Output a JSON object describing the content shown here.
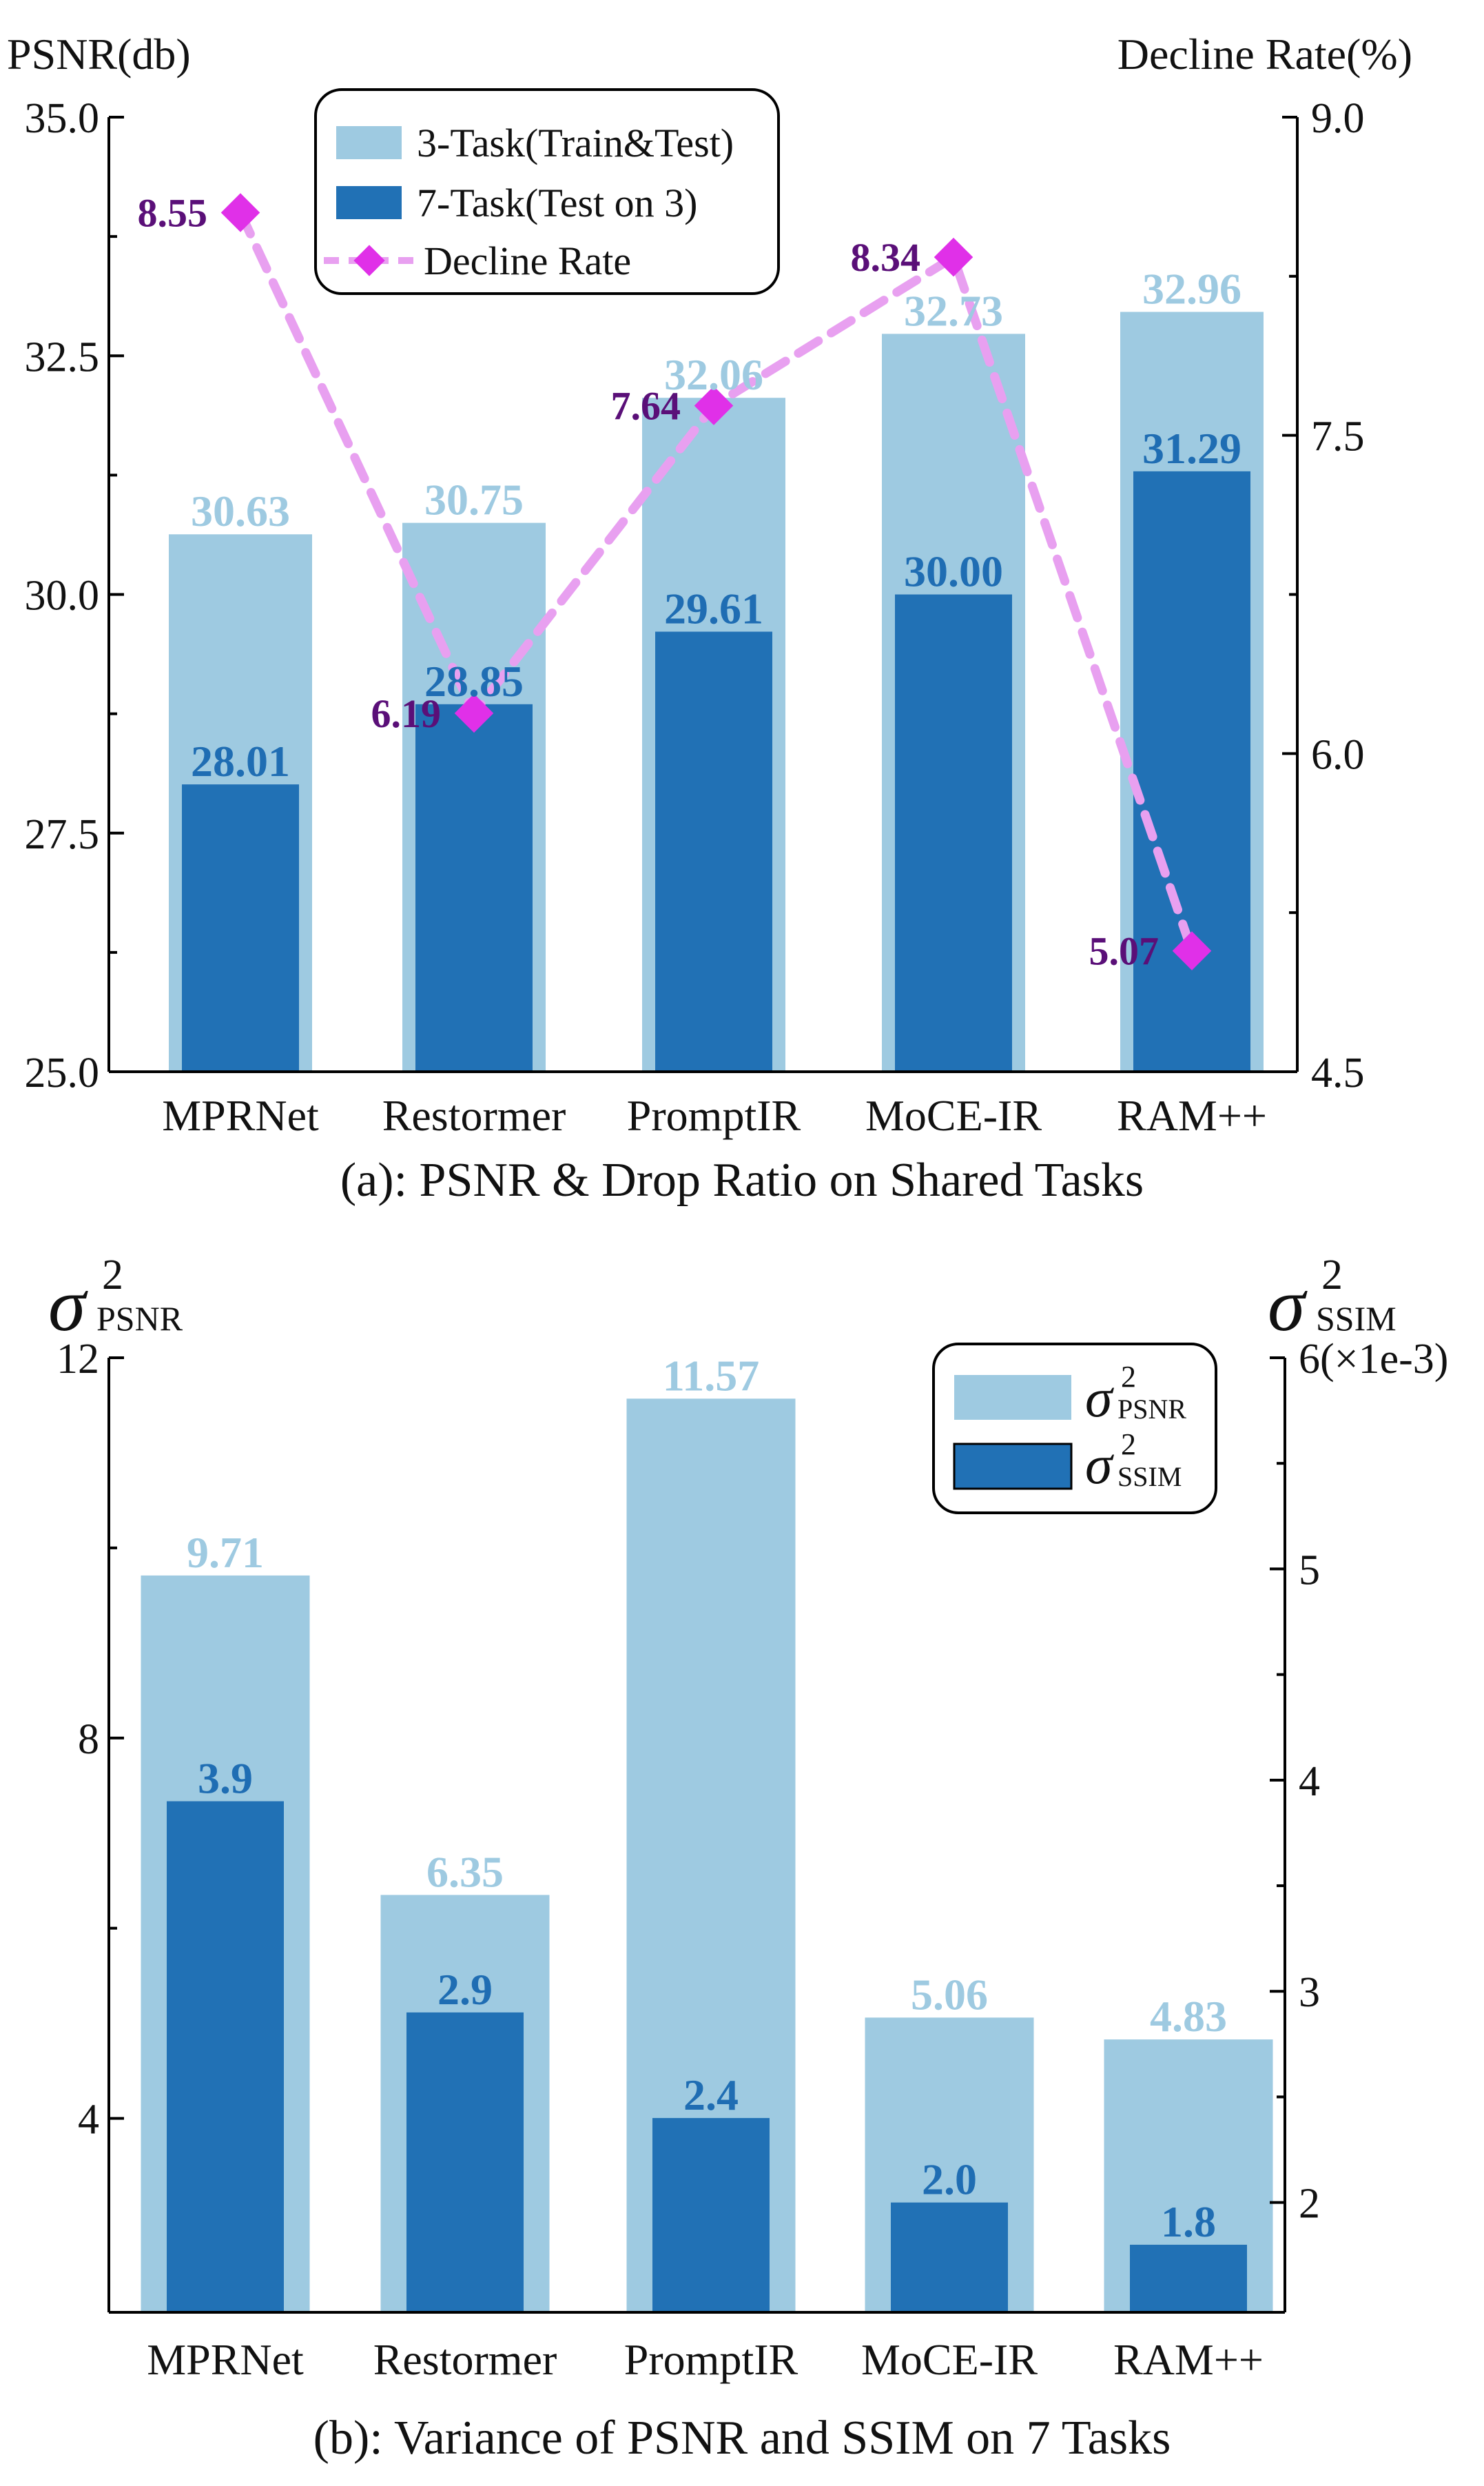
{
  "colors": {
    "light_bar": "#9ecae1",
    "dark_bar": "#2171b5",
    "light_label": "#9ecae1",
    "dark_label": "#1f6db3",
    "line": "#e8a0f0",
    "marker": "#e030e8",
    "rate_label": "#5a0f78",
    "axis": "#000000"
  },
  "chart_data": [
    {
      "type": "bar",
      "panel": "a",
      "caption": "(a): PSNR & Drop Ratio on Shared Tasks",
      "ylabel": "PSNR(db)",
      "y2label": "Decline Rate(%)",
      "categories": [
        "MPRNet",
        "Restormer",
        "PromptIR",
        "MoCE-IR",
        "RAM++"
      ],
      "ylim": [
        25.0,
        35.0
      ],
      "yticks": [
        25.0,
        27.5,
        30.0,
        32.5,
        35.0
      ],
      "ytick_labels": [
        "25.0",
        "27.5",
        "30.0",
        "32.5",
        "35.0"
      ],
      "y2lim": [
        4.5,
        9.0
      ],
      "y2ticks": [
        4.5,
        6.0,
        7.5,
        9.0
      ],
      "y2tick_labels": [
        "4.5",
        "6.0",
        "7.5",
        "9.0"
      ],
      "series": [
        {
          "name": "3-Task(Train&Test)",
          "values": [
            30.63,
            30.75,
            32.06,
            32.73,
            32.96
          ],
          "labels": [
            "30.63",
            "30.75",
            "32.06",
            "32.73",
            "32.96"
          ]
        },
        {
          "name": "7-Task(Test on 3)",
          "values": [
            28.01,
            28.85,
            29.61,
            30.0,
            31.29
          ],
          "labels": [
            "28.01",
            "28.85",
            "29.61",
            "30.00",
            "31.29"
          ]
        },
        {
          "name": "Decline Rate",
          "axis": "right",
          "type": "line",
          "values": [
            8.55,
            6.19,
            7.64,
            8.34,
            5.07
          ],
          "labels": [
            "8.55",
            "6.19",
            "7.64",
            "8.34",
            "5.07"
          ]
        }
      ],
      "legend": [
        "3-Task(Train&Test)",
        "7-Task(Test on 3)",
        "Decline Rate"
      ],
      "legend_position": "top-left"
    },
    {
      "type": "bar",
      "panel": "b",
      "caption": "(b): Variance of PSNR and SSIM on 7 Tasks",
      "ylabel_sub": "PSNR",
      "y2label_sub": "SSIM",
      "sigma_symbol": "σ",
      "sup": "2",
      "categories": [
        "MPRNet",
        "Restormer",
        "PromptIR",
        "MoCE-IR",
        "RAM++"
      ],
      "ylim": [
        1.96,
        12.0
      ],
      "yticks": [
        4,
        8,
        12
      ],
      "ytick_labels": [
        "4",
        "8",
        "12"
      ],
      "y2lim": [
        1.48,
        6.0
      ],
      "y2ticks": [
        2,
        3,
        4,
        5,
        6
      ],
      "y2tick_labels": [
        "2",
        "3",
        "4",
        "5",
        "6"
      ],
      "y2_top_suffix": "(×1e-3)",
      "series": [
        {
          "name": "PSNR variance",
          "values": [
            9.71,
            6.35,
            11.57,
            5.06,
            4.83
          ],
          "labels": [
            "9.71",
            "6.35",
            "11.57",
            "5.06",
            "4.83"
          ]
        },
        {
          "name": "SSIM variance",
          "axis": "right",
          "values": [
            3.9,
            2.9,
            2.4,
            2.0,
            1.8
          ],
          "labels": [
            "3.9",
            "2.9",
            "2.4",
            "2.0",
            "1.8"
          ]
        }
      ],
      "legend_position": "top-right"
    }
  ]
}
